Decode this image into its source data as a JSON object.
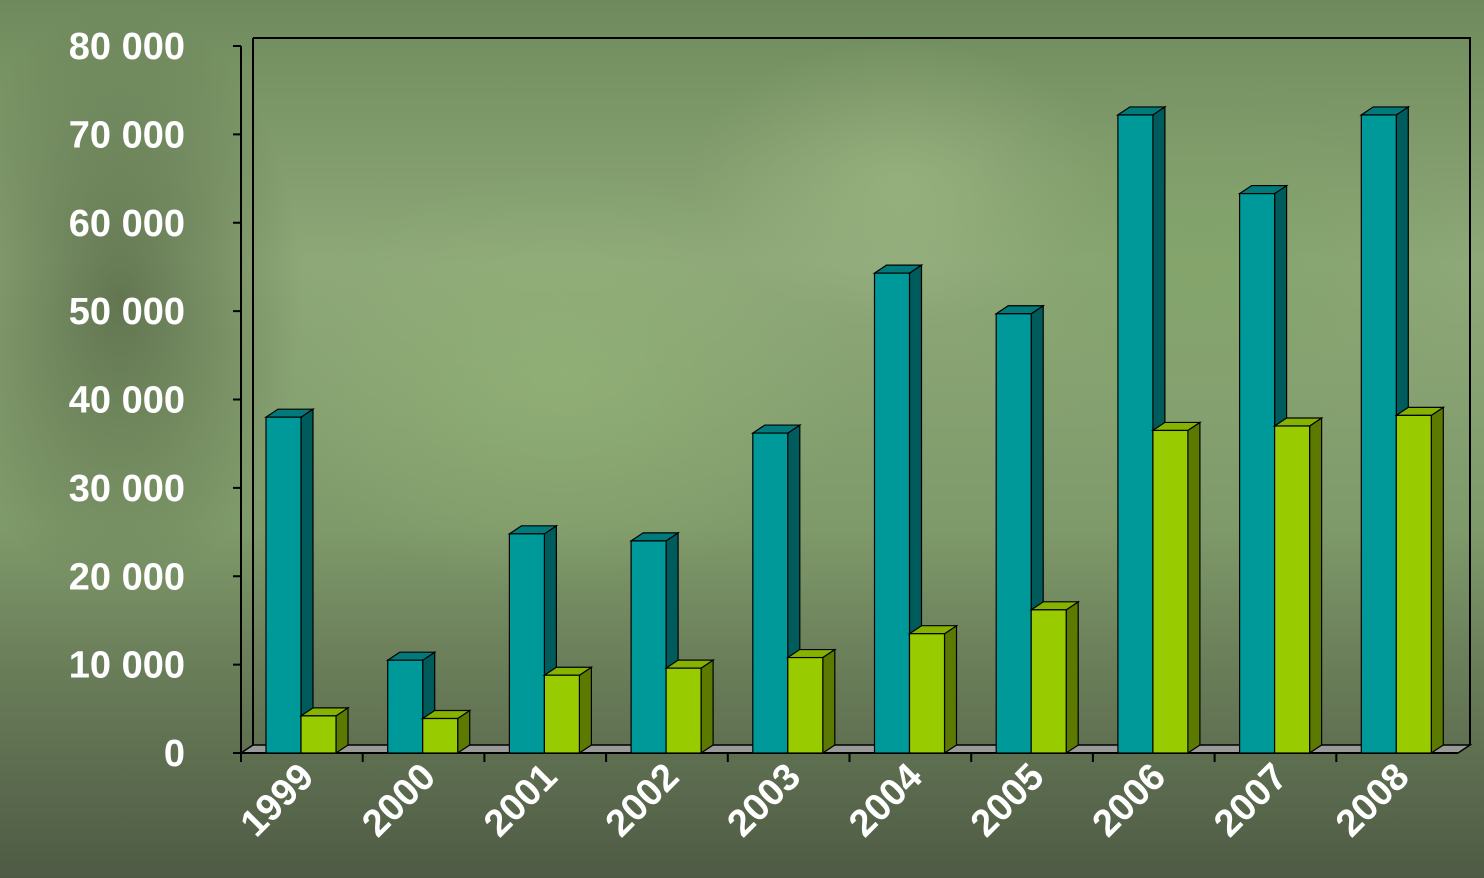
{
  "chart_data": {
    "type": "bar",
    "categories": [
      "1999",
      "2000",
      "2001",
      "2002",
      "2003",
      "2004",
      "2005",
      "2006",
      "2007",
      "2008"
    ],
    "series": [
      {
        "values": [
          38000,
          10500,
          24800,
          24000,
          36200,
          54300,
          49700,
          72200,
          63300,
          72200
        ]
      },
      {
        "values": [
          4200,
          3900,
          8800,
          9600,
          10800,
          13500,
          16200,
          36500,
          37000,
          38200
        ]
      }
    ],
    "y_ticks": [
      "0",
      "10 000",
      "20 000",
      "30 000",
      "40 000",
      "50 000",
      "60 000",
      "70 000",
      "80 000"
    ],
    "ylim": [
      0,
      80000
    ],
    "grid": false,
    "legend": "none",
    "colors": {
      "series_front": [
        "#009999",
        "#99cc00"
      ],
      "series_side": [
        "#005c5c",
        "#5c7a00"
      ],
      "series_top": [
        "#007a7a",
        "#86b300"
      ],
      "floor": "#9a9a9a",
      "axis": "#000000",
      "text": "#ffffff"
    }
  }
}
